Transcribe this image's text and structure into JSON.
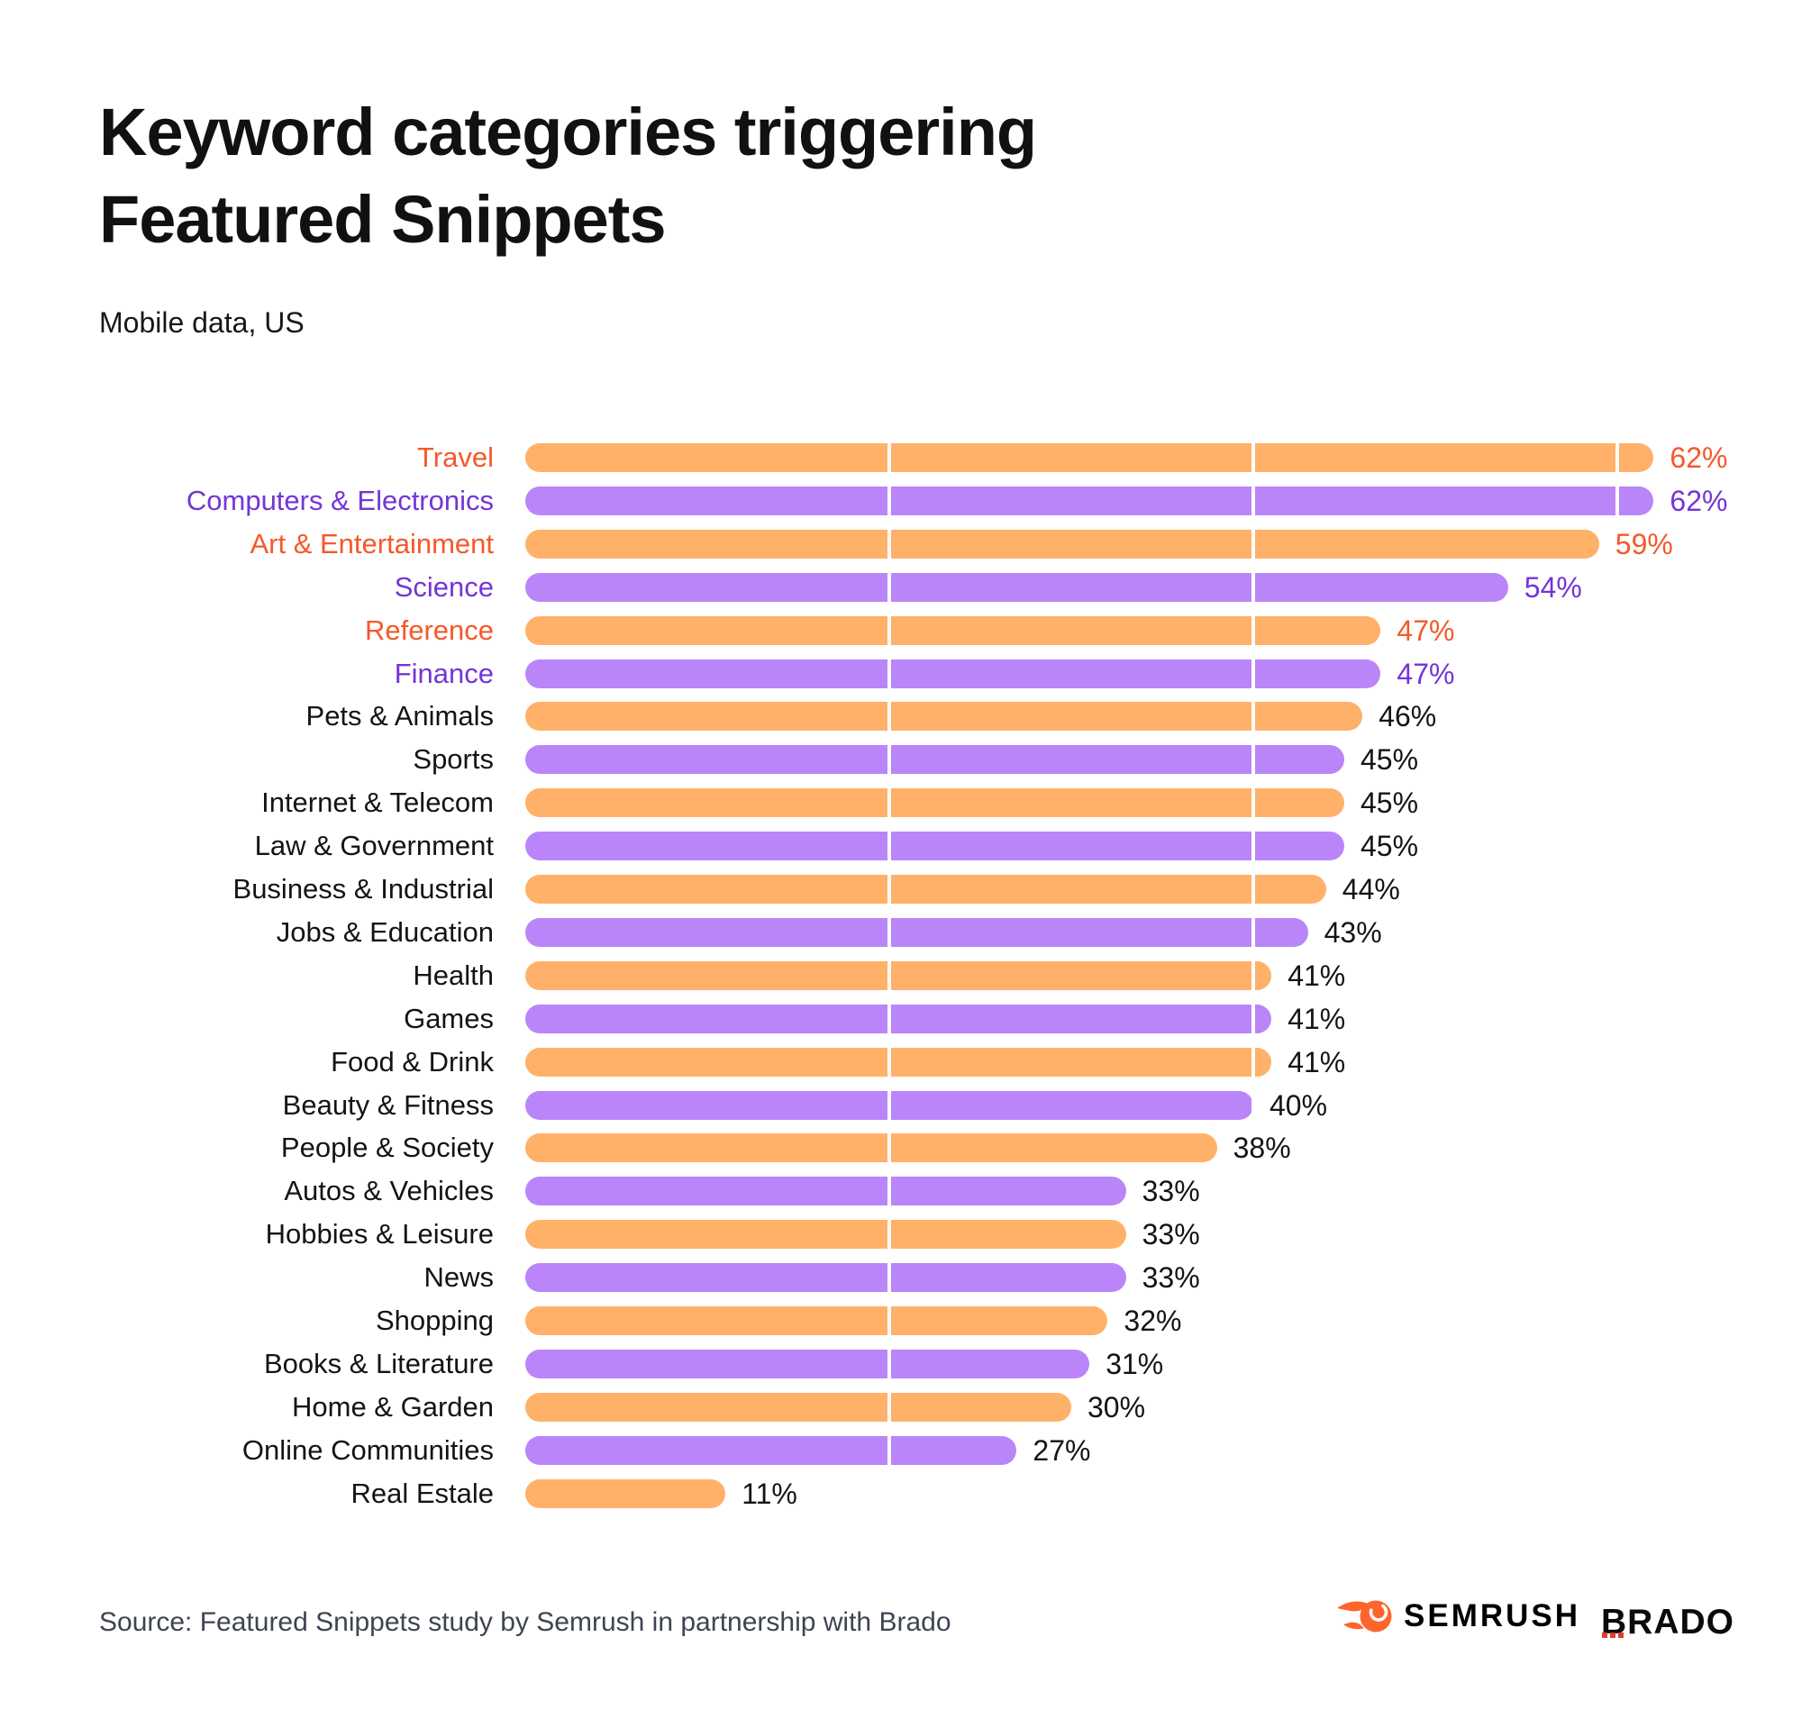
{
  "title_line1": "Keyword categories triggering",
  "title_line2": "Featured Snippets",
  "subtitle": "Mobile data, US",
  "source": "Source: Featured Snippets study by Semrush in partnership with Brado",
  "logos": {
    "semrush": "SEMRUSH",
    "brado": "BRADO"
  },
  "colors": {
    "bar_orange": "#FFB169",
    "bar_purple": "#BA85F8",
    "text_orange": "#F4582B",
    "text_purple": "#7435D6",
    "text_dark": "#141418",
    "source_gray": "#3E4450",
    "semrush_orange": "#FF642D",
    "brado_red": "#E03C31"
  },
  "chart_data": {
    "type": "bar",
    "orientation": "horizontal",
    "title": "Keyword categories triggering Featured Snippets",
    "subtitle": "Mobile data, US",
    "unit": "%",
    "xlim": [
      0,
      62
    ],
    "gridlines_pct": [
      20,
      40,
      60
    ],
    "legend": "none",
    "rows": [
      {
        "label": "Travel",
        "value": 62,
        "color": "orange",
        "highlight": true
      },
      {
        "label": "Computers & Electronics",
        "value": 62,
        "color": "purple",
        "highlight": true
      },
      {
        "label": "Art & Entertainment",
        "value": 59,
        "color": "orange",
        "highlight": true
      },
      {
        "label": "Science",
        "value": 54,
        "color": "purple",
        "highlight": true
      },
      {
        "label": "Reference",
        "value": 47,
        "color": "orange",
        "highlight": true
      },
      {
        "label": "Finance",
        "value": 47,
        "color": "purple",
        "highlight": true
      },
      {
        "label": "Pets & Animals",
        "value": 46,
        "color": "orange",
        "highlight": false
      },
      {
        "label": "Sports",
        "value": 45,
        "color": "purple",
        "highlight": false
      },
      {
        "label": "Internet & Telecom",
        "value": 45,
        "color": "orange",
        "highlight": false
      },
      {
        "label": "Law & Government",
        "value": 45,
        "color": "purple",
        "highlight": false
      },
      {
        "label": "Business & Industrial",
        "value": 44,
        "color": "orange",
        "highlight": false
      },
      {
        "label": "Jobs & Education",
        "value": 43,
        "color": "purple",
        "highlight": false
      },
      {
        "label": "Health",
        "value": 41,
        "color": "orange",
        "highlight": false
      },
      {
        "label": "Games",
        "value": 41,
        "color": "purple",
        "highlight": false
      },
      {
        "label": "Food & Drink",
        "value": 41,
        "color": "orange",
        "highlight": false
      },
      {
        "label": "Beauty & Fitness",
        "value": 40,
        "color": "purple",
        "highlight": false
      },
      {
        "label": "People & Society",
        "value": 38,
        "color": "orange",
        "highlight": false
      },
      {
        "label": "Autos & Vehicles",
        "value": 33,
        "color": "purple",
        "highlight": false
      },
      {
        "label": "Hobbies & Leisure",
        "value": 33,
        "color": "orange",
        "highlight": false
      },
      {
        "label": "News",
        "value": 33,
        "color": "purple",
        "highlight": false
      },
      {
        "label": "Shopping",
        "value": 32,
        "color": "orange",
        "highlight": false
      },
      {
        "label": "Books & Literature",
        "value": 31,
        "color": "purple",
        "highlight": false
      },
      {
        "label": "Home & Garden",
        "value": 30,
        "color": "orange",
        "highlight": false
      },
      {
        "label": "Online Communities",
        "value": 27,
        "color": "purple",
        "highlight": false
      },
      {
        "label": "Real Estale",
        "value": 11,
        "color": "orange",
        "highlight": false
      }
    ]
  }
}
